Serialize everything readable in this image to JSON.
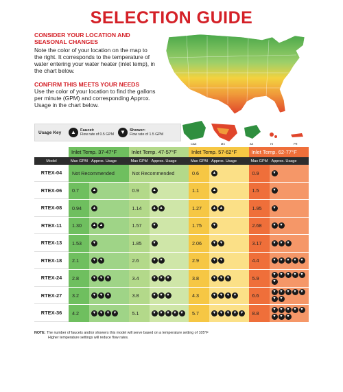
{
  "title": "SELECTION GUIDE",
  "section1": {
    "heading": "CONSIDER YOUR LOCATION AND SEASONAL CHANGES",
    "body": "Note the color of your location on the map to the right. It corresponds to the temperature of water entering your water heater (inlet temp), in the chart below."
  },
  "section2": {
    "heading": "CONFIRM THIS MEETS YOUR NEEDS",
    "body": "Use the color of your location to find the gallons per minute (GPM) and corresponding Approx. Usage in the chart below."
  },
  "map": {
    "insets": [
      "CAN",
      "MX",
      "AK",
      "HI",
      "PR"
    ]
  },
  "usage_key": {
    "label": "Usage Key",
    "faucet": {
      "title": "Faucet:",
      "desc": "Flow rate of 0.5 GPM",
      "icon": "faucet-icon"
    },
    "shower": {
      "title": "Shower:",
      "desc": "Flow rate of 1.5 GPM",
      "icon": "shower-icon"
    }
  },
  "zones": [
    {
      "label": "Inlet Temp. 37-47°F",
      "color": "#6fbf5f",
      "light": "#9fd487"
    },
    {
      "label": "Inlet Temp. 47-57°F",
      "color": "#b3d98a",
      "light": "#cfe6a8"
    },
    {
      "label": "Inlet Temp. 57-62°F",
      "color": "#f6c744",
      "light": "#fbe087"
    },
    {
      "label": "Inlet Temp. 62-77°F",
      "color": "#ef6f3a",
      "light": "#f59768"
    }
  ],
  "headers": {
    "model": "Model",
    "gpm": "Max GPM",
    "usage": "Approx. Usage"
  },
  "not_recommended": "Not Recommended",
  "rows": [
    {
      "model": "RTEX-04",
      "zones": [
        null,
        null,
        {
          "gpm": "0.6",
          "f": 1,
          "s": 0
        },
        {
          "gpm": "0.9",
          "f": 0,
          "s": 1
        }
      ]
    },
    {
      "model": "RTEX-06",
      "zones": [
        {
          "gpm": "0.7",
          "f": 1,
          "s": 0
        },
        {
          "gpm": "0.9",
          "f": 1,
          "s": 0
        },
        {
          "gpm": "1.1",
          "f": 1,
          "s": 0
        },
        {
          "gpm": "1.5",
          "f": 0,
          "s": 1
        }
      ]
    },
    {
      "model": "RTEX-08",
      "zones": [
        {
          "gpm": "0.94",
          "f": 1,
          "s": 0
        },
        {
          "gpm": "1.14",
          "f": 2,
          "s": 0
        },
        {
          "gpm": "1.27",
          "f": 2,
          "s": 0
        },
        {
          "gpm": "1.95",
          "f": 0,
          "s": 1
        }
      ]
    },
    {
      "model": "RTEX-11",
      "zones": [
        {
          "gpm": "1.30",
          "f": 2,
          "s": 0
        },
        {
          "gpm": "1.57",
          "f": 0,
          "s": 1
        },
        {
          "gpm": "1.75",
          "f": 0,
          "s": 1
        },
        {
          "gpm": "2.68",
          "f": 0,
          "s": 2
        }
      ]
    },
    {
      "model": "RTEX-13",
      "zones": [
        {
          "gpm": "1.53",
          "f": 0,
          "s": 1
        },
        {
          "gpm": "1.85",
          "f": 0,
          "s": 1
        },
        {
          "gpm": "2.06",
          "f": 0,
          "s": 2
        },
        {
          "gpm": "3.17",
          "f": 0,
          "s": 3
        }
      ]
    },
    {
      "model": "RTEX-18",
      "zones": [
        {
          "gpm": "2.1",
          "f": 0,
          "s": 2
        },
        {
          "gpm": "2.6",
          "f": 0,
          "s": 2
        },
        {
          "gpm": "2.9",
          "f": 0,
          "s": 2
        },
        {
          "gpm": "4.4",
          "f": 0,
          "s": 5
        }
      ]
    },
    {
      "model": "RTEX-24",
      "zones": [
        {
          "gpm": "2.8",
          "f": 0,
          "s": 3
        },
        {
          "gpm": "3.4",
          "f": 0,
          "s": 3
        },
        {
          "gpm": "3.8",
          "f": 0,
          "s": 3
        },
        {
          "gpm": "5.9",
          "f": 0,
          "s": 6
        }
      ]
    },
    {
      "model": "RTEX-27",
      "zones": [
        {
          "gpm": "3.2",
          "f": 0,
          "s": 3
        },
        {
          "gpm": "3.8",
          "f": 0,
          "s": 3
        },
        {
          "gpm": "4.3",
          "f": 0,
          "s": 4
        },
        {
          "gpm": "6.6",
          "f": 0,
          "s": 7
        }
      ]
    },
    {
      "model": "RTEX-36",
      "zones": [
        {
          "gpm": "4.2",
          "f": 0,
          "s": 4
        },
        {
          "gpm": "5.1",
          "f": 0,
          "s": 5
        },
        {
          "gpm": "5.7",
          "f": 0,
          "s": 5
        },
        {
          "gpm": "8.8",
          "f": 0,
          "s": 8
        }
      ]
    }
  ],
  "note": {
    "label": "NOTE:",
    "line1": "The number of faucets and/or showers this model will serve based on a temperature setting of 105°F",
    "line2": "Higher temperature settings will reduce flow rates."
  }
}
